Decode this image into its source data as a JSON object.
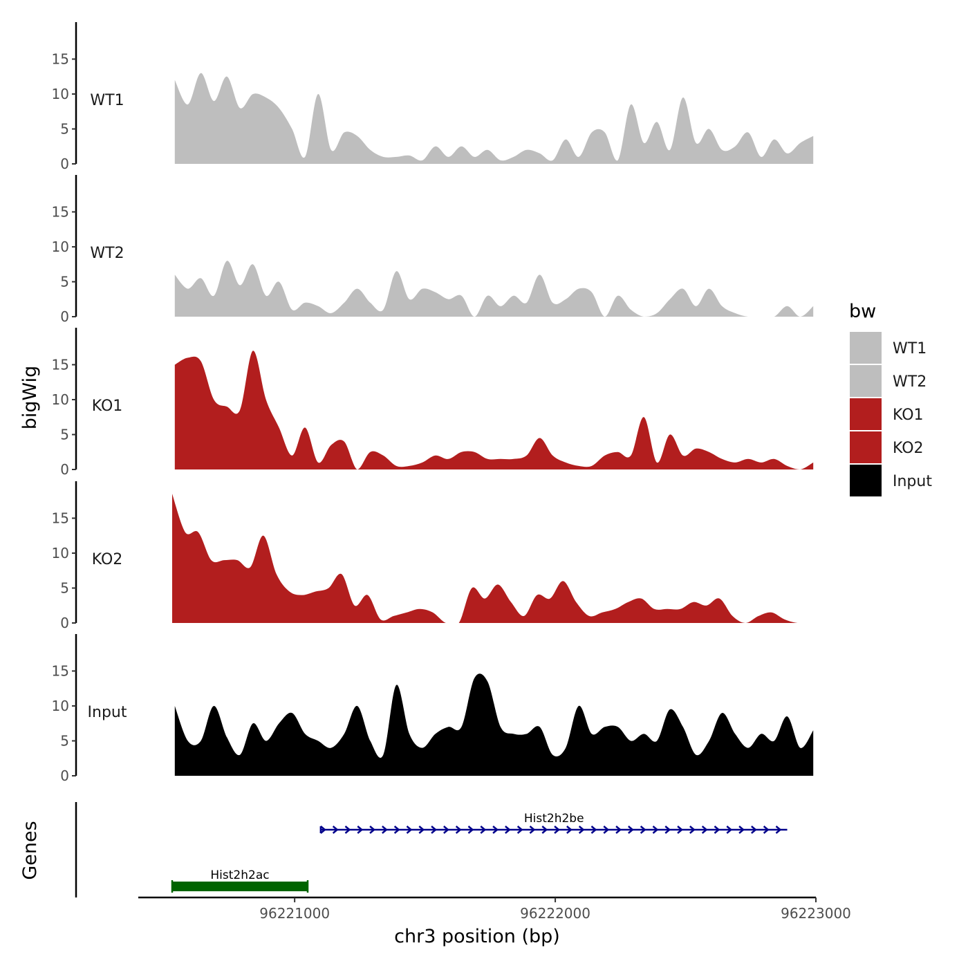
{
  "chart_data": {
    "type": "area",
    "title": "",
    "ylabel": "bigWig",
    "genes_label": "Genes",
    "xlabel": "chr3 position (bp)",
    "xlim": [
      96220400,
      96223000
    ],
    "xticks": [
      96221000,
      96222000,
      96223000
    ],
    "xtick_labels": [
      "96221000",
      "96222000",
      "96223000"
    ],
    "ylim": [
      0,
      19.5
    ],
    "yticks": [
      0,
      5,
      10,
      15
    ],
    "ytick_labels": [
      "0",
      "5",
      "10",
      "15"
    ],
    "legend": {
      "title": "bw",
      "position": "right",
      "entries": [
        {
          "label": "WT1",
          "color": "#bebebe"
        },
        {
          "label": "WT2",
          "color": "#bebebe"
        },
        {
          "label": "KO1",
          "color": "#b21e1e"
        },
        {
          "label": "KO2",
          "color": "#b21e1e"
        },
        {
          "label": "Input",
          "color": "#000000"
        }
      ]
    },
    "series": [
      {
        "name": "WT1",
        "color": "#bebebe",
        "start": 96220540,
        "step": 50,
        "values": [
          12,
          8.5,
          13,
          9,
          12.5,
          8,
          10,
          9.5,
          8,
          5,
          1,
          10,
          2,
          4.5,
          4,
          2,
          1,
          1,
          1.2,
          0.5,
          2.5,
          1,
          2.5,
          1,
          2,
          0.5,
          1,
          2,
          1.5,
          0.5,
          3.5,
          1,
          4.5,
          4.5,
          0.5,
          8.5,
          3,
          6,
          2,
          9.5,
          3,
          5,
          2,
          2.5,
          4.5,
          1,
          3.5,
          1.5,
          3,
          4
        ]
      },
      {
        "name": "WT2",
        "color": "#bebebe",
        "start": 96220540,
        "step": 50,
        "values": [
          6,
          4,
          5.5,
          3,
          8,
          4.5,
          7.5,
          3,
          5,
          1,
          2,
          1.5,
          0.5,
          2,
          4,
          2,
          1,
          6.5,
          2.5,
          4,
          3.5,
          2.5,
          3,
          0,
          3,
          1.5,
          3,
          2,
          6,
          2,
          2.5,
          4,
          3.5,
          0,
          3,
          1,
          0,
          0.5,
          2.5,
          4,
          1.5,
          4,
          1.5,
          0.5,
          0,
          0,
          0,
          1.5,
          0,
          1.5
        ]
      },
      {
        "name": "KO1",
        "color": "#b21e1e",
        "start": 96220540,
        "step": 50,
        "values": [
          15,
          16,
          15.5,
          10,
          9,
          8.5,
          17,
          10,
          6,
          2,
          6,
          1,
          3.5,
          4,
          0,
          2.5,
          2,
          0.5,
          0.5,
          1,
          2,
          1.5,
          2.5,
          2.5,
          1.5,
          1.5,
          1.5,
          2,
          4.5,
          2,
          1,
          0.5,
          0.5,
          2,
          2.5,
          2,
          7.5,
          1,
          5,
          2,
          3,
          2.5,
          1.5,
          1,
          1.5,
          1,
          1.5,
          0.5,
          0,
          1
        ]
      },
      {
        "name": "KO2",
        "color": "#b21e1e",
        "start": 96220530,
        "step": 50,
        "values": [
          18.5,
          13,
          13,
          9,
          9,
          9,
          8,
          12.5,
          7,
          4.5,
          4,
          4.5,
          5,
          7,
          2.5,
          4,
          0.5,
          1,
          1.5,
          2,
          1.5,
          0,
          0,
          5,
          3.5,
          5.5,
          3,
          1,
          4,
          3.5,
          6,
          3,
          1,
          1.5,
          2,
          3,
          3.5,
          2,
          2,
          2,
          3,
          2.5,
          3.5,
          1,
          0,
          1,
          1.5,
          0.5,
          0,
          0
        ]
      },
      {
        "name": "Input",
        "color": "#000000",
        "start": 96220540,
        "step": 50,
        "values": [
          10,
          5,
          5,
          10,
          5.5,
          3,
          7.5,
          5,
          7.5,
          9,
          6,
          5,
          4,
          6,
          10,
          5,
          3,
          13,
          6,
          4,
          6,
          7,
          7,
          14,
          13.5,
          7,
          6,
          6,
          7,
          3,
          4,
          10,
          6,
          7,
          7,
          5,
          6,
          5,
          9.5,
          7,
          3,
          5,
          9,
          6,
          4,
          6,
          5,
          8.5,
          4,
          6.5
        ]
      }
    ],
    "genes": [
      {
        "name": "Hist2h2ac",
        "start": 96220530,
        "end": 96221050,
        "strand": "",
        "color": "#006400",
        "row": 2
      },
      {
        "name": "Hist2h2be",
        "start": 96221100,
        "end": 96222890,
        "strand": "+",
        "color": "#00008b",
        "row": 1
      }
    ]
  }
}
